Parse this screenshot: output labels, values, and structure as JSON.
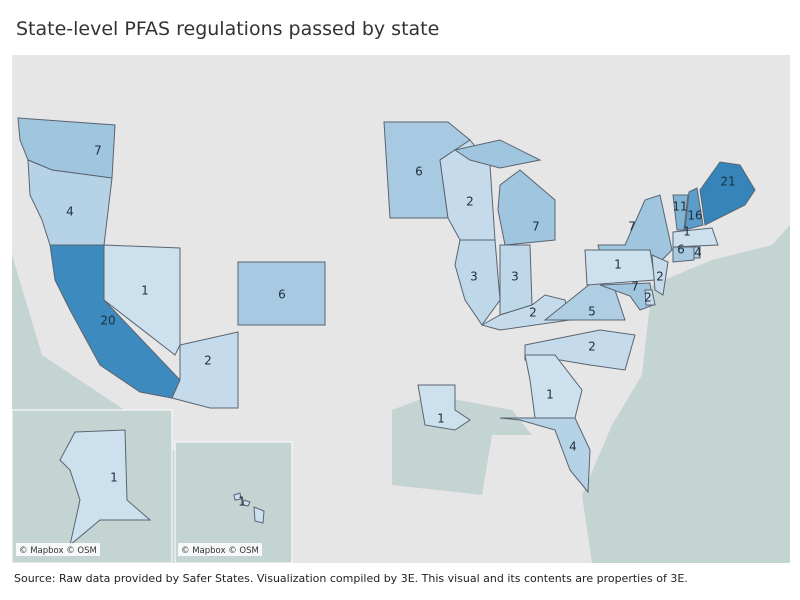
{
  "title": "State-level PFAS regulations passed by state",
  "source": "Source: Raw data provided by Safer States. Visualization compiled by 3E. This visual and its contents are properties of 3E.",
  "credit": "© Mapbox © OSM",
  "colors": {
    "low": "#cde0ee",
    "high": "#3585bb",
    "land": "#e6e6e6",
    "water": "#c4d4d2",
    "border": "#5a6470"
  },
  "scale": {
    "min": 1,
    "max": 21
  },
  "states": [
    {
      "id": "WA",
      "value": 7
    },
    {
      "id": "OR",
      "value": 4
    },
    {
      "id": "CA",
      "value": 20
    },
    {
      "id": "NV",
      "value": 1
    },
    {
      "id": "AZ",
      "value": 2
    },
    {
      "id": "CO",
      "value": 6
    },
    {
      "id": "MN",
      "value": 6
    },
    {
      "id": "WI",
      "value": 2
    },
    {
      "id": "MI",
      "value": 7
    },
    {
      "id": "IL",
      "value": 3
    },
    {
      "id": "IN",
      "value": 3
    },
    {
      "id": "KY",
      "value": 2
    },
    {
      "id": "VA",
      "value": 5
    },
    {
      "id": "NC",
      "value": 2
    },
    {
      "id": "GA",
      "value": 1
    },
    {
      "id": "FL",
      "value": 4
    },
    {
      "id": "LA",
      "value": 1
    },
    {
      "id": "NY",
      "value": 7
    },
    {
      "id": "PA",
      "value": 1
    },
    {
      "id": "NJ",
      "value": 2
    },
    {
      "id": "MD",
      "value": 7
    },
    {
      "id": "DE",
      "value": 2
    },
    {
      "id": "VT",
      "value": 11
    },
    {
      "id": "NH",
      "value": 16
    },
    {
      "id": "ME",
      "value": 21
    },
    {
      "id": "MA",
      "value": 1
    },
    {
      "id": "CT",
      "value": 6
    },
    {
      "id": "RI",
      "value": 4
    },
    {
      "id": "AK",
      "value": 1
    },
    {
      "id": "HI",
      "value": 1
    }
  ]
}
